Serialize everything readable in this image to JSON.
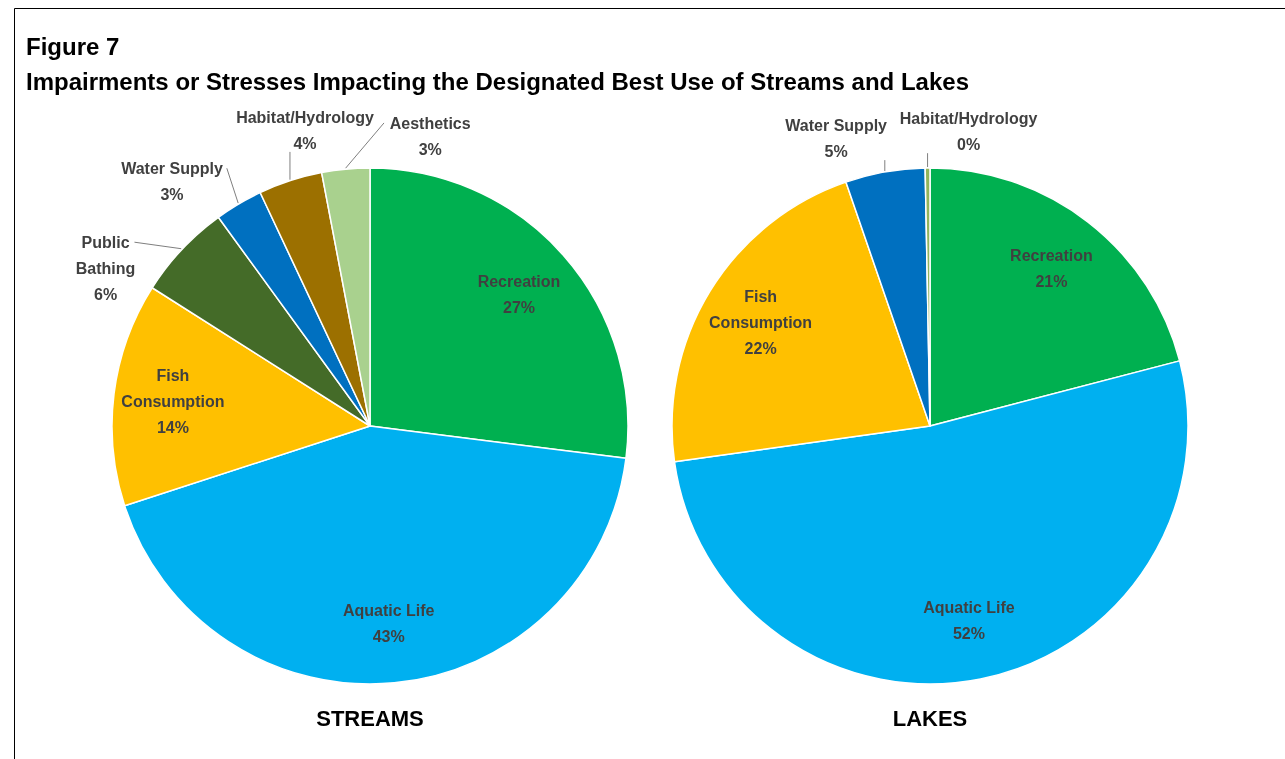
{
  "chart_data": [
    {
      "type": "pie",
      "title": "STREAMS",
      "annotations": [
        "Figure 7",
        "Impairments or Stresses Impacting the Designated Best Use of Streams and Lakes"
      ],
      "categories": [
        "Recreation",
        "Aquatic Life",
        "Fish Consumption",
        "Public Bathing",
        "Water Supply",
        "Habitat/Hydrology",
        "Aesthetics"
      ],
      "values": [
        27,
        43,
        14,
        6,
        3,
        4,
        3
      ],
      "value_labels": [
        "27%",
        "43%",
        "14%",
        "6%",
        "3%",
        "4%",
        "3%"
      ],
      "colors": [
        "#00b050",
        "#00b0f0",
        "#ffc000",
        "#446b28",
        "#0070c0",
        "#9c7000",
        "#a9d18e"
      ]
    },
    {
      "type": "pie",
      "title": "LAKES",
      "categories": [
        "Recreation",
        "Aquatic Life",
        "Fish Consumption",
        "Water Supply",
        "Habitat/Hydrology"
      ],
      "values": [
        21,
        52,
        22,
        5,
        0.3
      ],
      "value_labels": [
        "21%",
        "52%",
        "22%",
        "5%",
        "0%"
      ],
      "colors": [
        "#00b050",
        "#00b0f0",
        "#ffc000",
        "#0070c0",
        "#92b55c"
      ]
    }
  ]
}
